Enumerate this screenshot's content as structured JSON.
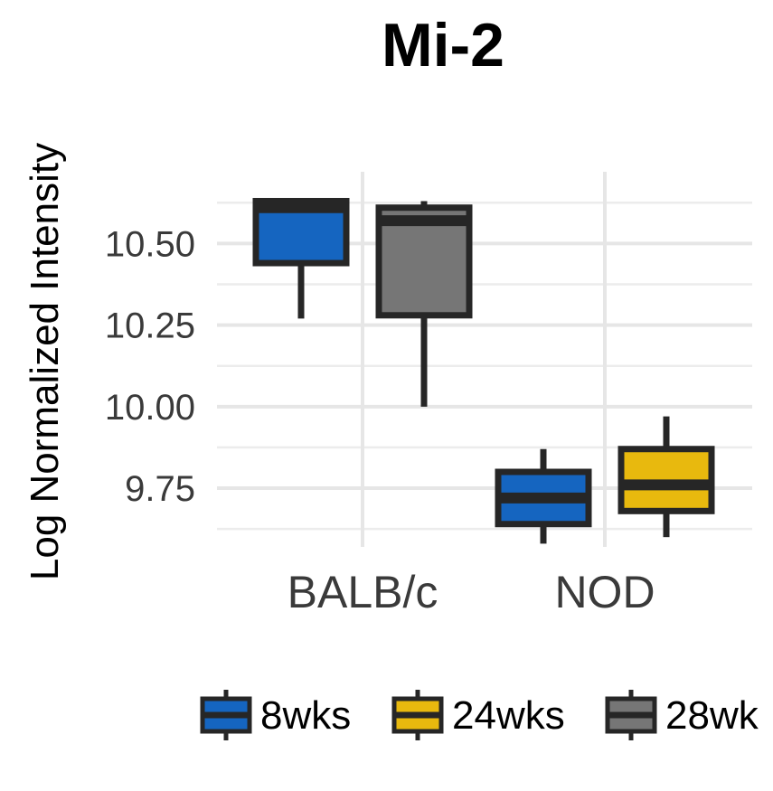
{
  "chart_data": {
    "type": "box",
    "title": "Mi-2",
    "ylabel": "Log Normalized Intensity",
    "xlabel": "",
    "categories": [
      "BALB/c",
      "NOD"
    ],
    "ylim": [
      9.57,
      10.72
    ],
    "yticks": [
      9.75,
      10.0,
      10.25,
      10.5
    ],
    "ytick_labels": [
      "9.75",
      "10.00",
      "10.25",
      "10.50"
    ],
    "grid": true,
    "legend_position": "bottom",
    "series": [
      {
        "name": "8wks",
        "color": "#1565C0",
        "boxes": [
          {
            "category": "BALB/c",
            "min": 10.27,
            "q1": 10.44,
            "median": 10.61,
            "q3": 10.63,
            "max": 10.63
          },
          {
            "category": "NOD",
            "min": 9.58,
            "q1": 9.64,
            "median": 9.72,
            "q3": 9.8,
            "max": 9.87
          }
        ]
      },
      {
        "name": "24wks",
        "color": "#E8B90E",
        "boxes": [
          {
            "category": "NOD",
            "min": 9.6,
            "q1": 9.68,
            "median": 9.76,
            "q3": 9.87,
            "max": 9.97
          }
        ]
      },
      {
        "name": "28wk",
        "color": "#767676",
        "boxes": [
          {
            "category": "BALB/c",
            "min": 10.0,
            "q1": 10.28,
            "median": 10.57,
            "q3": 10.61,
            "max": 10.63
          }
        ]
      }
    ],
    "legend": [
      "8wks",
      "24wks",
      "28wk"
    ]
  }
}
